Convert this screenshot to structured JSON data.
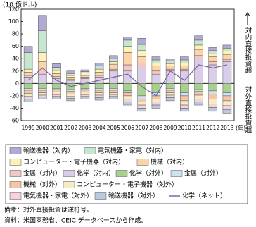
{
  "chart_data": {
    "type": "bar",
    "y_axis_label": "(10 億ドル)",
    "x_axis_label": "(年)",
    "side_labels": [
      "対内直接投資超",
      "対外直接投資超"
    ],
    "notes": [
      "備考：対外直接投資は逆符号。",
      "資料：米国商務省、CEIC データベースから作成。"
    ],
    "categories": [
      "1999",
      "2000",
      "2001",
      "2002",
      "2003",
      "2004",
      "2005",
      "2006",
      "2007",
      "2008",
      "2009",
      "2010",
      "2011",
      "2012",
      "2013"
    ],
    "ylim": [
      -60,
      120
    ],
    "yticks": [
      -60,
      -40,
      -20,
      0,
      20,
      40,
      60,
      80,
      100,
      120
    ],
    "grid": false,
    "series": [
      {
        "name": "化学（対内）",
        "color": "#d9cdea",
        "values": [
          10,
          15,
          8,
          5,
          8,
          10,
          20,
          20,
          25,
          15,
          20,
          20,
          40,
          30,
          35
        ]
      },
      {
        "name": "金属（対内）",
        "color": "#f4c7c3",
        "values": [
          3,
          10,
          3,
          2,
          2,
          3,
          3,
          10,
          8,
          5,
          3,
          3,
          5,
          5,
          4
        ]
      },
      {
        "name": "機械（対内）",
        "color": "#fbd4a8",
        "values": [
          5,
          10,
          5,
          3,
          3,
          5,
          8,
          20,
          10,
          8,
          5,
          5,
          10,
          8,
          8
        ]
      },
      {
        "name": "コンピューター・電子機器（対内）",
        "color": "#fff1b8",
        "values": [
          5,
          15,
          5,
          3,
          4,
          5,
          4,
          10,
          10,
          5,
          4,
          5,
          7,
          5,
          5
        ]
      },
      {
        "name": "電気機器・家電（対内）",
        "color": "#c7e6cf",
        "values": [
          27,
          35,
          5,
          3,
          2,
          5,
          5,
          10,
          10,
          5,
          4,
          5,
          8,
          5,
          5
        ]
      },
      {
        "name": "輸送機器（対内）",
        "color": "#b3a9d6",
        "values": [
          10,
          25,
          6,
          4,
          3,
          5,
          5,
          5,
          10,
          5,
          4,
          5,
          7,
          5,
          5
        ]
      },
      {
        "name": "化学（対外）",
        "color": "#a9d18e",
        "values": [
          -8,
          -8,
          -8,
          -10,
          -8,
          -8,
          -8,
          -12,
          -20,
          -15,
          -8,
          -15,
          -10,
          -12,
          -15
        ]
      },
      {
        "name": "金属（対外）",
        "color": "#c9e3f2",
        "values": [
          -3,
          -3,
          -2,
          -3,
          -2,
          -3,
          -3,
          -3,
          -5,
          -5,
          -3,
          -5,
          -3,
          -5,
          -5
        ]
      },
      {
        "name": "機械（対外）",
        "color": "#f7c4a5",
        "values": [
          -5,
          -4,
          -4,
          -4,
          -4,
          -4,
          -4,
          -5,
          -5,
          -5,
          -4,
          -8,
          -6,
          -8,
          -8
        ]
      },
      {
        "name": "コンピューター・電子機器（対外）",
        "color": "#f3ecc4",
        "values": [
          -5,
          -4,
          -4,
          -4,
          -4,
          -4,
          -3,
          -5,
          -5,
          -5,
          -4,
          -7,
          -6,
          -8,
          -8
        ]
      },
      {
        "name": "電気機器・家電（対外）",
        "color": "#f6d2d9",
        "values": [
          -4,
          -3,
          -3,
          -3,
          -3,
          -4,
          -3,
          -5,
          -5,
          -5,
          -4,
          -5,
          -5,
          -6,
          -6
        ]
      },
      {
        "name": "輸送機器（対外）",
        "color": "#b9c9e0",
        "values": [
          -5,
          -3,
          -4,
          -4,
          -4,
          -4,
          -4,
          -5,
          -5,
          -5,
          -5,
          -5,
          -5,
          -6,
          -6
        ]
      },
      {
        "name": "化学（ネット）",
        "type": "line",
        "color": "#8064a2",
        "values": [
          5,
          25,
          5,
          -5,
          0,
          5,
          10,
          15,
          -5,
          -20,
          20,
          5,
          30,
          25,
          30
        ]
      }
    ]
  }
}
